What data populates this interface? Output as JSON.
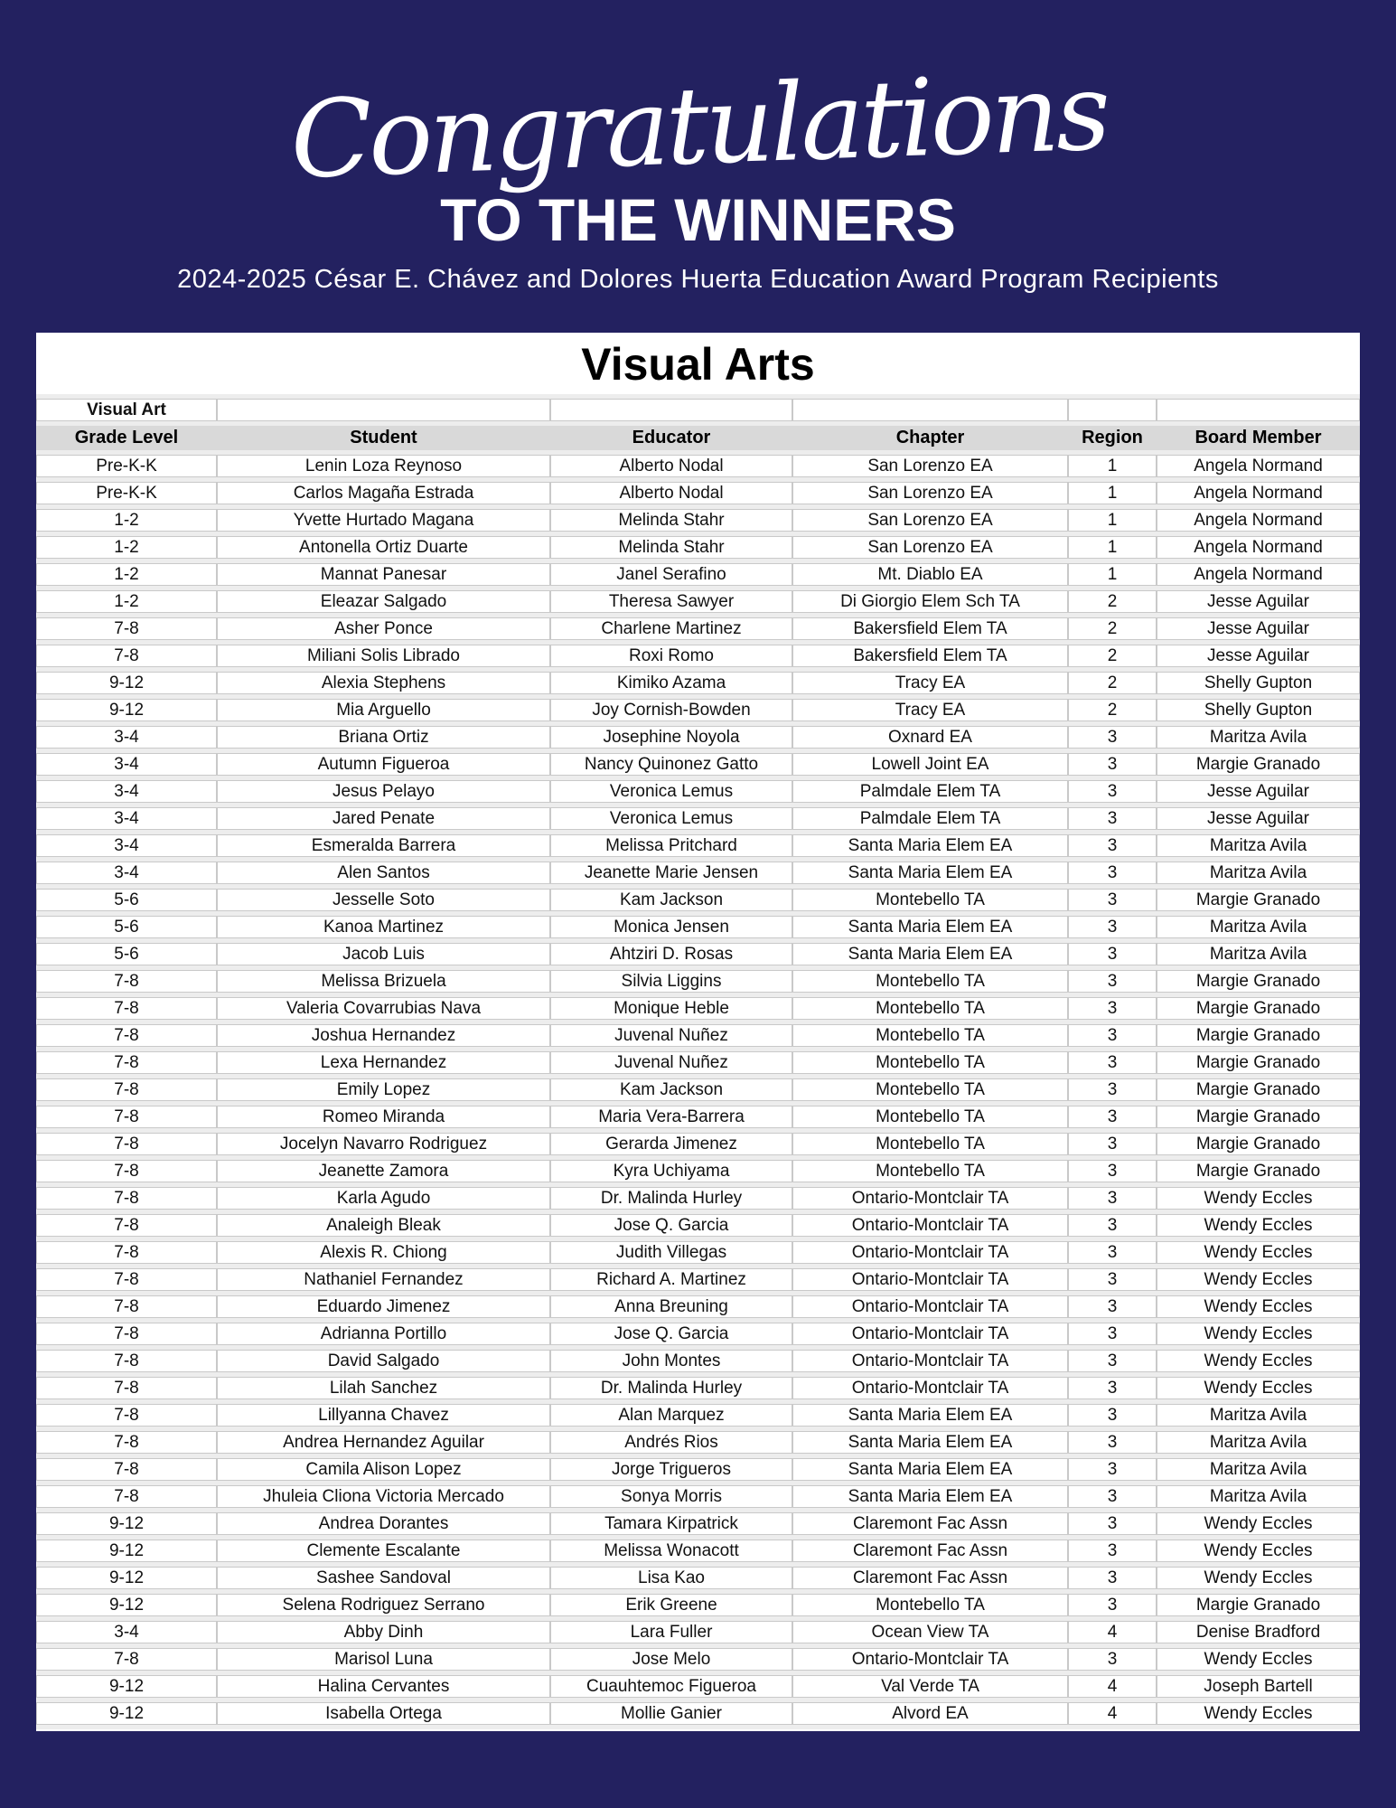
{
  "header": {
    "script_title": "Congratulations",
    "main_title": "TO THE WINNERS",
    "subtitle": "2024-2025 César E. Chávez and Dolores Huerta Education Award Program Recipients"
  },
  "table": {
    "title": "Visual Arts",
    "corner_label": "Visual Art",
    "columns": [
      "Grade Level",
      "Student",
      "Educator",
      "Chapter",
      "Region",
      "Board Member"
    ],
    "rows": [
      [
        "Pre-K-K",
        "Lenin Loza Reynoso",
        "Alberto Nodal",
        "San Lorenzo EA",
        "1",
        "Angela Normand"
      ],
      [
        "Pre-K-K",
        "Carlos Magaña Estrada",
        "Alberto Nodal",
        "San Lorenzo EA",
        "1",
        "Angela Normand"
      ],
      [
        "1-2",
        "Yvette Hurtado Magana",
        "Melinda Stahr",
        "San Lorenzo EA",
        "1",
        "Angela Normand"
      ],
      [
        "1-2",
        "Antonella Ortiz Duarte",
        "Melinda Stahr",
        "San Lorenzo EA",
        "1",
        "Angela Normand"
      ],
      [
        "1-2",
        "Mannat Panesar",
        "Janel Serafino",
        "Mt. Diablo EA",
        "1",
        "Angela Normand"
      ],
      [
        "1-2",
        "Eleazar Salgado",
        "Theresa Sawyer",
        "Di Giorgio Elem Sch TA",
        "2",
        "Jesse Aguilar"
      ],
      [
        "7-8",
        "Asher Ponce",
        "Charlene Martinez",
        "Bakersfield Elem TA",
        "2",
        "Jesse Aguilar"
      ],
      [
        "7-8",
        "Miliani Solis Librado",
        "Roxi Romo",
        "Bakersfield Elem TA",
        "2",
        "Jesse Aguilar"
      ],
      [
        "9-12",
        "Alexia Stephens",
        "Kimiko Azama",
        "Tracy EA",
        "2",
        "Shelly Gupton"
      ],
      [
        "9-12",
        "Mia Arguello",
        "Joy Cornish-Bowden",
        "Tracy EA",
        "2",
        "Shelly Gupton"
      ],
      [
        "3-4",
        "Briana Ortiz",
        "Josephine Noyola",
        "Oxnard EA",
        "3",
        "Maritza Avila"
      ],
      [
        "3-4",
        "Autumn Figueroa",
        "Nancy Quinonez Gatto",
        "Lowell Joint EA",
        "3",
        "Margie Granado"
      ],
      [
        "3-4",
        "Jesus Pelayo",
        "Veronica Lemus",
        "Palmdale Elem TA",
        "3",
        "Jesse Aguilar"
      ],
      [
        "3-4",
        "Jared Penate",
        "Veronica Lemus",
        "Palmdale Elem TA",
        "3",
        "Jesse Aguilar"
      ],
      [
        "3-4",
        "Esmeralda Barrera",
        "Melissa Pritchard",
        "Santa Maria Elem EA",
        "3",
        "Maritza Avila"
      ],
      [
        "3-4",
        "Alen Santos",
        "Jeanette Marie Jensen",
        "Santa Maria Elem EA",
        "3",
        "Maritza Avila"
      ],
      [
        "5-6",
        "Jesselle Soto",
        "Kam Jackson",
        "Montebello TA",
        "3",
        "Margie Granado"
      ],
      [
        "5-6",
        "Kanoa Martinez",
        "Monica Jensen",
        "Santa Maria Elem EA",
        "3",
        "Maritza Avila"
      ],
      [
        "5-6",
        "Jacob Luis",
        "Ahtziri D. Rosas",
        "Santa Maria Elem EA",
        "3",
        "Maritza Avila"
      ],
      [
        "7-8",
        "Melissa Brizuela",
        "Silvia Liggins",
        "Montebello TA",
        "3",
        "Margie Granado"
      ],
      [
        "7-8",
        "Valeria Covarrubias Nava",
        "Monique Heble",
        "Montebello TA",
        "3",
        "Margie Granado"
      ],
      [
        "7-8",
        "Joshua Hernandez",
        "Juvenal Nuñez",
        "Montebello TA",
        "3",
        "Margie Granado"
      ],
      [
        "7-8",
        "Lexa Hernandez",
        "Juvenal Nuñez",
        "Montebello TA",
        "3",
        "Margie Granado"
      ],
      [
        "7-8",
        "Emily Lopez",
        "Kam Jackson",
        "Montebello TA",
        "3",
        "Margie Granado"
      ],
      [
        "7-8",
        "Romeo Miranda",
        "Maria Vera-Barrera",
        "Montebello TA",
        "3",
        "Margie Granado"
      ],
      [
        "7-8",
        "Jocelyn Navarro Rodriguez",
        "Gerarda Jimenez",
        "Montebello TA",
        "3",
        "Margie Granado"
      ],
      [
        "7-8",
        "Jeanette Zamora",
        "Kyra Uchiyama",
        "Montebello TA",
        "3",
        "Margie Granado"
      ],
      [
        "7-8",
        "Karla Agudo",
        "Dr. Malinda Hurley",
        "Ontario-Montclair TA",
        "3",
        "Wendy Eccles"
      ],
      [
        "7-8",
        "Analeigh Bleak",
        "Jose Q. Garcia",
        "Ontario-Montclair TA",
        "3",
        "Wendy Eccles"
      ],
      [
        "7-8",
        "Alexis R. Chiong",
        "Judith Villegas",
        "Ontario-Montclair TA",
        "3",
        "Wendy Eccles"
      ],
      [
        "7-8",
        "Nathaniel Fernandez",
        "Richard A. Martinez",
        "Ontario-Montclair TA",
        "3",
        "Wendy Eccles"
      ],
      [
        "7-8",
        "Eduardo Jimenez",
        "Anna Breuning",
        "Ontario-Montclair TA",
        "3",
        "Wendy Eccles"
      ],
      [
        "7-8",
        "Adrianna Portillo",
        "Jose Q. Garcia",
        "Ontario-Montclair TA",
        "3",
        "Wendy Eccles"
      ],
      [
        "7-8",
        "David Salgado",
        "John Montes",
        "Ontario-Montclair TA",
        "3",
        "Wendy Eccles"
      ],
      [
        "7-8",
        "Lilah Sanchez",
        "Dr. Malinda Hurley",
        "Ontario-Montclair TA",
        "3",
        "Wendy Eccles"
      ],
      [
        "7-8",
        "Lillyanna Chavez",
        "Alan Marquez",
        "Santa Maria Elem EA",
        "3",
        "Maritza Avila"
      ],
      [
        "7-8",
        "Andrea Hernandez Aguilar",
        "Andrés Rios",
        "Santa Maria Elem EA",
        "3",
        "Maritza Avila"
      ],
      [
        "7-8",
        "Camila Alison Lopez",
        "Jorge Trigueros",
        "Santa Maria Elem EA",
        "3",
        "Maritza Avila"
      ],
      [
        "7-8",
        "Jhuleia Cliona Victoria Mercado",
        "Sonya Morris",
        "Santa Maria Elem EA",
        "3",
        "Maritza Avila"
      ],
      [
        "9-12",
        "Andrea Dorantes",
        "Tamara Kirpatrick",
        "Claremont Fac Assn",
        "3",
        "Wendy Eccles"
      ],
      [
        "9-12",
        "Clemente Escalante",
        "Melissa Wonacott",
        "Claremont Fac Assn",
        "3",
        "Wendy Eccles"
      ],
      [
        "9-12",
        "Sashee Sandoval",
        "Lisa Kao",
        "Claremont Fac Assn",
        "3",
        "Wendy Eccles"
      ],
      [
        "9-12",
        "Selena Rodriguez Serrano",
        "Erik Greene",
        "Montebello TA",
        "3",
        "Margie Granado"
      ],
      [
        "3-4",
        "Abby Dinh",
        "Lara Fuller",
        "Ocean View TA",
        "4",
        "Denise Bradford"
      ],
      [
        "7-8",
        "Marisol Luna",
        "Jose Melo",
        "Ontario-Montclair TA",
        "3",
        "Wendy Eccles"
      ],
      [
        "9-12",
        "Halina Cervantes",
        "Cuauhtemoc Figueroa",
        "Val Verde TA",
        "4",
        "Joseph Bartell"
      ],
      [
        "9-12",
        "Isabella Ortega",
        "Mollie Ganier",
        "Alvord EA",
        "4",
        "Wendy Eccles"
      ]
    ]
  },
  "colors": {
    "background": "#232160",
    "header_row": "#d9d9d9",
    "row_gap": "#ededed",
    "cell_border": "#c9c9c9",
    "text": "#111111",
    "title_text": "#ffffff"
  }
}
